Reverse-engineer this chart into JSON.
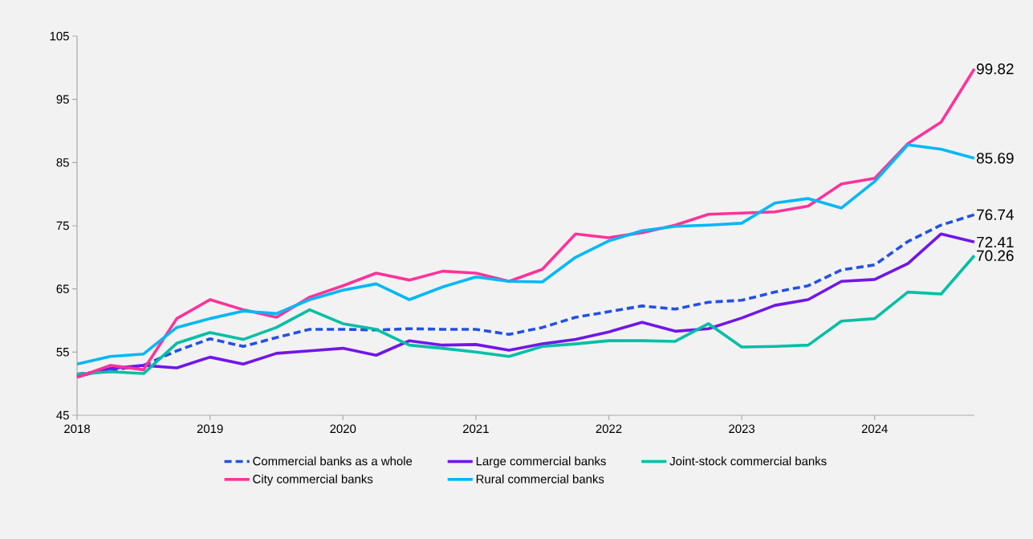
{
  "chart_data": {
    "type": "line",
    "x": [
      2018,
      2018.25,
      2018.5,
      2018.75,
      2019,
      2019.25,
      2019.5,
      2019.75,
      2020,
      2020.25,
      2020.5,
      2020.75,
      2021,
      2021.25,
      2021.5,
      2021.75,
      2022,
      2022.25,
      2022.5,
      2022.75,
      2023,
      2023.25,
      2023.5,
      2023.75,
      2024,
      2024.25,
      2024.5,
      2024.75
    ],
    "xlim": [
      2018,
      2024.75
    ],
    "xticks": [
      2018,
      2019,
      2020,
      2021,
      2022,
      2023,
      2024
    ],
    "ylim": [
      45,
      105
    ],
    "yticks": [
      45,
      55,
      65,
      75,
      85,
      95,
      105
    ],
    "grid": false,
    "legend": "bottom",
    "marker": "none",
    "series": [
      {
        "name": "Commercial banks as a whole",
        "color": "#2350e6",
        "line_style": "dashed",
        "values": [
          51.5,
          52.1,
          52.9,
          55.2,
          57.1,
          55.9,
          57.3,
          58.6,
          58.6,
          58.5,
          58.7,
          58.6,
          58.6,
          57.8,
          58.9,
          60.5,
          61.4,
          62.3,
          61.8,
          62.9,
          63.2,
          64.5,
          65.5,
          68.0,
          68.8,
          72.5,
          75.1,
          76.74
        ],
        "value_labels": [
          null,
          null,
          null,
          null,
          null,
          null,
          null,
          null,
          null,
          null,
          null,
          null,
          null,
          null,
          null,
          null,
          null,
          null,
          null,
          null,
          null,
          null,
          null,
          null,
          null,
          null,
          null,
          "76.74"
        ]
      },
      {
        "name": "Large commercial banks",
        "color": "#7216e8",
        "line_style": "solid",
        "values": [
          51.1,
          52.4,
          52.9,
          52.5,
          54.2,
          53.1,
          54.8,
          55.2,
          55.6,
          54.5,
          56.8,
          56.1,
          56.2,
          55.3,
          56.3,
          57.0,
          58.2,
          59.7,
          58.3,
          58.7,
          60.4,
          62.4,
          63.3,
          66.2,
          66.5,
          69.0,
          73.7,
          72.41
        ],
        "value_labels": [
          null,
          null,
          null,
          null,
          null,
          null,
          null,
          null,
          null,
          null,
          null,
          null,
          null,
          null,
          null,
          null,
          null,
          null,
          null,
          null,
          null,
          null,
          null,
          null,
          null,
          null,
          null,
          "72.41"
        ]
      },
      {
        "name": "Joint-stock commercial banks",
        "color": "#00bfa5",
        "line_style": "solid",
        "values": [
          51.5,
          51.9,
          51.6,
          56.4,
          58.1,
          57.0,
          58.9,
          61.7,
          59.5,
          58.6,
          56.1,
          55.6,
          55.0,
          54.3,
          55.9,
          56.3,
          56.8,
          56.8,
          56.7,
          59.5,
          55.8,
          55.9,
          56.1,
          59.9,
          60.3,
          64.5,
          64.2,
          70.26
        ],
        "value_labels": [
          null,
          null,
          null,
          null,
          null,
          null,
          null,
          null,
          null,
          null,
          null,
          null,
          null,
          null,
          null,
          null,
          null,
          null,
          null,
          null,
          null,
          null,
          null,
          null,
          null,
          null,
          null,
          "70.26"
        ]
      },
      {
        "name": "City commercial banks",
        "color": "#ff3399",
        "line_style": "solid",
        "values": [
          51.0,
          52.9,
          52.2,
          60.3,
          63.3,
          61.7,
          60.5,
          63.7,
          65.5,
          67.5,
          66.4,
          67.8,
          67.5,
          66.2,
          68.1,
          73.7,
          73.1,
          73.9,
          75.1,
          76.8,
          77.0,
          77.2,
          78.1,
          81.6,
          82.5,
          88.0,
          91.4,
          99.82
        ],
        "value_labels": [
          null,
          null,
          null,
          null,
          null,
          null,
          null,
          null,
          null,
          null,
          null,
          null,
          null,
          null,
          null,
          null,
          null,
          null,
          null,
          null,
          null,
          null,
          null,
          null,
          null,
          null,
          null,
          "99.82"
        ]
      },
      {
        "name": "Rural commercial banks",
        "color": "#00b8f5",
        "line_style": "solid",
        "values": [
          53.1,
          54.3,
          54.7,
          58.9,
          60.3,
          61.5,
          61.1,
          63.3,
          64.8,
          65.8,
          63.3,
          65.3,
          66.9,
          66.2,
          66.1,
          70.0,
          72.6,
          74.2,
          74.9,
          75.1,
          75.4,
          78.6,
          79.3,
          77.8,
          82.0,
          87.8,
          87.1,
          85.69
        ],
        "value_labels": [
          null,
          null,
          null,
          null,
          null,
          null,
          null,
          null,
          null,
          null,
          null,
          null,
          null,
          null,
          null,
          null,
          null,
          null,
          null,
          null,
          null,
          null,
          null,
          null,
          null,
          null,
          null,
          "85.69"
        ]
      }
    ]
  }
}
